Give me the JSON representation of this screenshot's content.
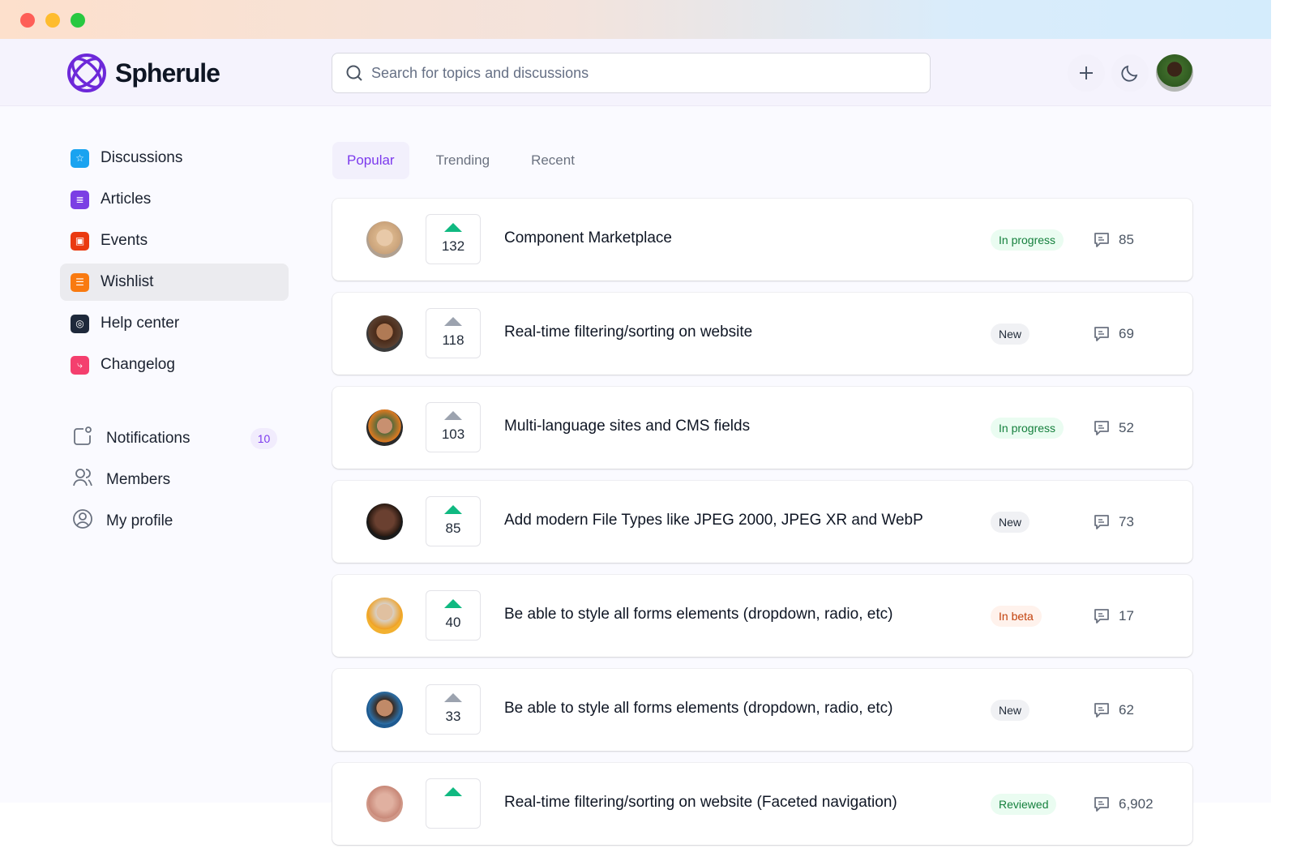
{
  "app": {
    "name": "Spherule",
    "brand_color": "#6d28d9"
  },
  "search": {
    "placeholder": "Search for topics and discussions"
  },
  "header_actions": [
    {
      "icon": "plus-icon"
    },
    {
      "icon": "moon-icon"
    },
    {
      "icon": "user-avatar"
    }
  ],
  "sidebar": {
    "items": [
      {
        "label": "Discussions",
        "icon": "star-icon",
        "color": "#1aa3f0"
      },
      {
        "label": "Articles",
        "icon": "newspaper-icon",
        "color": "#7b3fe4"
      },
      {
        "label": "Events",
        "icon": "calendar-icon",
        "color": "#ea3a10"
      },
      {
        "label": "Wishlist",
        "icon": "list-icon",
        "color": "#f97a10",
        "active": true
      },
      {
        "label": "Help center",
        "icon": "globe-icon",
        "color": "#1e293b"
      },
      {
        "label": "Changelog",
        "icon": "git-branch-icon",
        "color": "#f43f6e"
      }
    ],
    "secondary": [
      {
        "label": "Notifications",
        "icon": "notification-icon",
        "badge": "10"
      },
      {
        "label": "Members",
        "icon": "users-icon"
      },
      {
        "label": "My profile",
        "icon": "user-circle-icon"
      }
    ]
  },
  "tabs": [
    {
      "label": "Popular",
      "active": true
    },
    {
      "label": "Trending"
    },
    {
      "label": "Recent"
    }
  ],
  "posts": [
    {
      "votes": "132",
      "upvoted": true,
      "title": "Component Marketplace",
      "status": "In progress",
      "status_type": "progress",
      "comments": "85"
    },
    {
      "votes": "118",
      "upvoted": false,
      "title": "Real-time filtering/sorting on website",
      "status": "New",
      "status_type": "new",
      "comments": "69"
    },
    {
      "votes": "103",
      "upvoted": false,
      "title": "Multi-language sites and CMS fields",
      "status": "In progress",
      "status_type": "progress",
      "comments": "52"
    },
    {
      "votes": "85",
      "upvoted": true,
      "title": "Add modern File Types like JPEG 2000, JPEG XR and WebP",
      "status": "New",
      "status_type": "new",
      "comments": "73"
    },
    {
      "votes": "40",
      "upvoted": true,
      "title": "Be able to style all forms elements (dropdown, radio, etc)",
      "status": "In beta",
      "status_type": "beta",
      "comments": "17"
    },
    {
      "votes": "33",
      "upvoted": false,
      "title": "Be able to style all forms elements (dropdown, radio, etc)",
      "status": "New",
      "status_type": "new",
      "comments": "62"
    },
    {
      "votes": "",
      "upvoted": true,
      "title": "Real-time filtering/sorting on website (Faceted navigation)",
      "status": "Reviewed",
      "status_type": "reviewed",
      "comments": "6,902"
    }
  ]
}
